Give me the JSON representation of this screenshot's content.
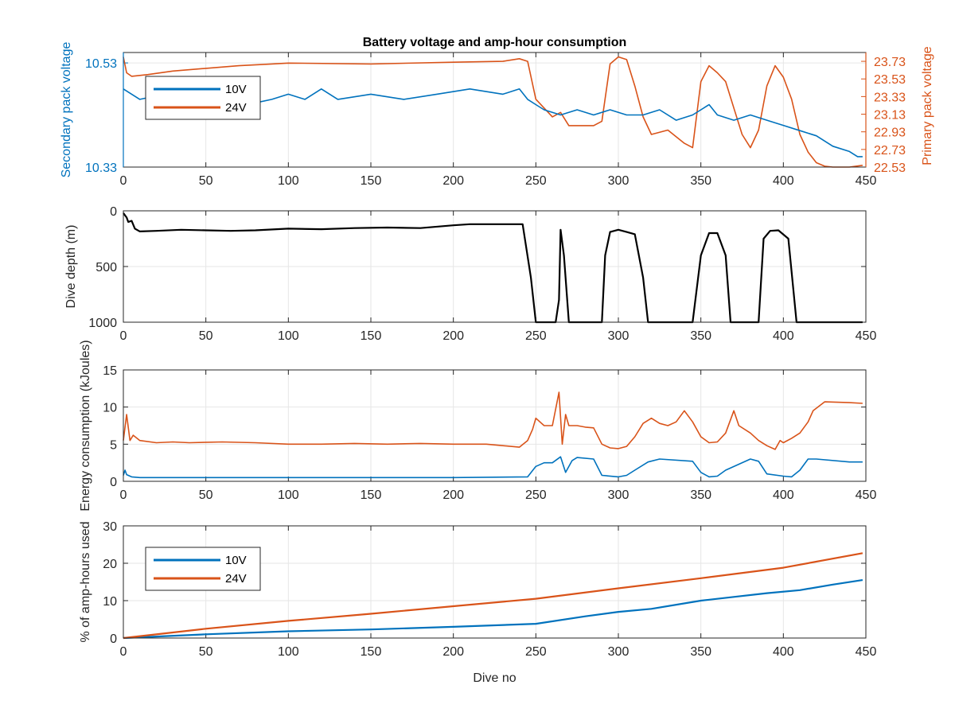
{
  "colors": {
    "v10": "#0072BD",
    "v24": "#D95319",
    "depth": "#000000",
    "axis": "#262626",
    "grid": "#e6e6e6"
  },
  "chart_data": [
    {
      "type": "line",
      "title": "Battery voltage and amp-hour consumption",
      "xlabel": "",
      "ylabel_left": "Secondary pack voltage",
      "ylabel_right": "Primary pack voltage",
      "xlim": [
        0,
        450
      ],
      "ylim_left": [
        10.33,
        10.55
      ],
      "ylim_right": [
        22.53,
        23.83
      ],
      "xticks": [
        "0",
        "50",
        "100",
        "150",
        "200",
        "250",
        "300",
        "350",
        "400",
        "450"
      ],
      "yticks_left": [
        "10.33",
        "10.53"
      ],
      "yticks_right": [
        "22.53",
        "22.73",
        "22.93",
        "23.13",
        "23.33",
        "23.53",
        "23.73"
      ],
      "grid": true,
      "legend": {
        "placement": "top-left",
        "entries": [
          "10V",
          "24V"
        ]
      },
      "series": [
        {
          "name": "10V",
          "axis": "left",
          "x": [
            0,
            10,
            25,
            40,
            50,
            60,
            75,
            90,
            100,
            110,
            120,
            130,
            150,
            170,
            190,
            210,
            230,
            240,
            245,
            250,
            255,
            265,
            275,
            285,
            295,
            305,
            315,
            325,
            335,
            345,
            350,
            355,
            360,
            370,
            380,
            390,
            400,
            410,
            420,
            430,
            440,
            445,
            448
          ],
          "y": [
            10.48,
            10.46,
            10.47,
            10.45,
            10.46,
            10.47,
            10.45,
            10.46,
            10.47,
            10.46,
            10.48,
            10.46,
            10.47,
            10.46,
            10.47,
            10.48,
            10.47,
            10.48,
            10.46,
            10.45,
            10.44,
            10.43,
            10.44,
            10.43,
            10.44,
            10.43,
            10.43,
            10.44,
            10.42,
            10.43,
            10.44,
            10.45,
            10.43,
            10.42,
            10.43,
            10.42,
            10.41,
            10.4,
            10.39,
            10.37,
            10.36,
            10.35,
            10.35
          ]
        },
        {
          "name": "24V",
          "axis": "right",
          "x": [
            0,
            2,
            5,
            15,
            30,
            50,
            70,
            90,
            100,
            150,
            200,
            230,
            240,
            245,
            250,
            255,
            260,
            265,
            270,
            285,
            290,
            295,
            300,
            305,
            310,
            315,
            320,
            330,
            340,
            345,
            350,
            355,
            360,
            365,
            370,
            375,
            380,
            385,
            390,
            395,
            400,
            405,
            410,
            415,
            420,
            425,
            430,
            440,
            448
          ],
          "y": [
            23.78,
            23.6,
            23.56,
            23.58,
            23.62,
            23.65,
            23.68,
            23.7,
            23.71,
            23.7,
            23.72,
            23.73,
            23.76,
            23.73,
            23.3,
            23.2,
            23.1,
            23.15,
            23.0,
            23.0,
            23.05,
            23.7,
            23.78,
            23.75,
            23.45,
            23.1,
            22.9,
            22.95,
            22.8,
            22.75,
            23.5,
            23.68,
            23.6,
            23.5,
            23.2,
            22.9,
            22.75,
            22.95,
            23.45,
            23.68,
            23.55,
            23.3,
            22.9,
            22.7,
            22.58,
            22.54,
            22.53,
            22.53,
            22.55
          ]
        }
      ]
    },
    {
      "type": "line",
      "title": "",
      "xlabel": "",
      "ylabel": "Dive depth (m)",
      "xlim": [
        0,
        450
      ],
      "ylim": [
        0,
        1000
      ],
      "y_reversed": true,
      "xticks": [
        "0",
        "50",
        "100",
        "150",
        "200",
        "250",
        "300",
        "350",
        "400",
        "450"
      ],
      "yticks": [
        "0",
        "500",
        "1000"
      ],
      "grid": true,
      "series": [
        {
          "name": "",
          "x": [
            0,
            2,
            3,
            5,
            7,
            10,
            20,
            35,
            50,
            65,
            80,
            100,
            120,
            140,
            160,
            180,
            200,
            210,
            230,
            242,
            247,
            250,
            253,
            262,
            264,
            265,
            267,
            270,
            290,
            292,
            295,
            300,
            305,
            310,
            315,
            318,
            345,
            350,
            355,
            360,
            365,
            368,
            385,
            388,
            392,
            397,
            403,
            408,
            420,
            448
          ],
          "y": [
            20,
            60,
            100,
            90,
            160,
            185,
            180,
            170,
            175,
            180,
            175,
            160,
            165,
            155,
            150,
            155,
            130,
            120,
            120,
            120,
            600,
            1000,
            1000,
            1000,
            800,
            170,
            400,
            1000,
            1000,
            400,
            190,
            170,
            190,
            210,
            600,
            1000,
            1000,
            400,
            200,
            200,
            400,
            1000,
            1000,
            250,
            180,
            175,
            250,
            1000,
            1000,
            1000
          ]
        }
      ]
    },
    {
      "type": "line",
      "title": "",
      "xlabel": "",
      "ylabel": "Energy consumption (kJoules)",
      "xlim": [
        0,
        450
      ],
      "ylim": [
        0,
        15
      ],
      "xticks": [
        "0",
        "50",
        "100",
        "150",
        "200",
        "250",
        "300",
        "350",
        "400",
        "450"
      ],
      "yticks": [
        "0",
        "5",
        "10",
        "15"
      ],
      "grid": true,
      "series": [
        {
          "name": "10V",
          "x": [
            0,
            1,
            2,
            5,
            10,
            30,
            50,
            100,
            150,
            200,
            245,
            250,
            255,
            260,
            265,
            268,
            272,
            275,
            285,
            290,
            300,
            305,
            310,
            318,
            325,
            345,
            350,
            355,
            360,
            365,
            380,
            385,
            390,
            400,
            405,
            410,
            415,
            420,
            440,
            448
          ],
          "y": [
            0.8,
            1.5,
            0.9,
            0.6,
            0.5,
            0.5,
            0.5,
            0.5,
            0.5,
            0.5,
            0.6,
            2.0,
            2.5,
            2.5,
            3.3,
            1.2,
            2.8,
            3.2,
            3.0,
            0.8,
            0.6,
            0.8,
            1.5,
            2.6,
            3.0,
            2.7,
            1.2,
            0.6,
            0.7,
            1.5,
            3.0,
            2.7,
            1.0,
            0.7,
            0.6,
            1.5,
            3.0,
            3.0,
            2.6,
            2.6
          ]
        },
        {
          "name": "24V",
          "x": [
            0,
            2,
            4,
            6,
            10,
            20,
            30,
            40,
            60,
            80,
            100,
            120,
            140,
            160,
            180,
            200,
            220,
            240,
            245,
            248,
            250,
            255,
            260,
            264,
            266,
            268,
            270,
            275,
            280,
            285,
            290,
            295,
            300,
            305,
            310,
            315,
            320,
            325,
            330,
            335,
            340,
            345,
            350,
            355,
            360,
            365,
            370,
            373,
            380,
            385,
            390,
            395,
            398,
            400,
            405,
            410,
            415,
            418,
            425,
            440,
            448
          ],
          "y": [
            5.5,
            9.0,
            5.5,
            6.2,
            5.5,
            5.2,
            5.3,
            5.2,
            5.3,
            5.2,
            5.0,
            5.0,
            5.1,
            5.0,
            5.1,
            5.0,
            5.0,
            4.6,
            5.5,
            7.0,
            8.5,
            7.5,
            7.5,
            12.0,
            5.0,
            9.0,
            7.5,
            7.5,
            7.3,
            7.2,
            5.0,
            4.5,
            4.4,
            4.7,
            6.0,
            7.8,
            8.5,
            7.8,
            7.5,
            8.0,
            9.5,
            8.0,
            6.0,
            5.2,
            5.3,
            6.5,
            9.5,
            7.5,
            6.5,
            5.5,
            4.8,
            4.3,
            5.5,
            5.2,
            5.8,
            6.5,
            8.0,
            9.5,
            10.7,
            10.6,
            10.5
          ]
        }
      ]
    },
    {
      "type": "line",
      "title": "",
      "xlabel": "Dive no",
      "ylabel": "% of amp-hours used",
      "xlim": [
        0,
        450
      ],
      "ylim": [
        0,
        30
      ],
      "xticks": [
        "0",
        "50",
        "100",
        "150",
        "200",
        "250",
        "300",
        "350",
        "400",
        "450"
      ],
      "yticks": [
        "0",
        "10",
        "20",
        "30"
      ],
      "grid": true,
      "legend": {
        "placement": "top-left",
        "entries": [
          "10V",
          "24V"
        ]
      },
      "series": [
        {
          "name": "10V",
          "x": [
            0,
            50,
            100,
            150,
            200,
            250,
            280,
            300,
            320,
            350,
            370,
            390,
            410,
            430,
            448
          ],
          "y": [
            0,
            1.0,
            1.8,
            2.3,
            3.0,
            3.8,
            5.8,
            7.0,
            7.8,
            10.0,
            11.0,
            12.0,
            12.8,
            14.3,
            15.5
          ]
        },
        {
          "name": "24V",
          "x": [
            0,
            50,
            100,
            150,
            200,
            250,
            300,
            350,
            400,
            448
          ],
          "y": [
            0,
            2.5,
            4.6,
            6.5,
            8.5,
            10.5,
            13.3,
            16.0,
            18.8,
            22.7
          ]
        }
      ]
    }
  ]
}
